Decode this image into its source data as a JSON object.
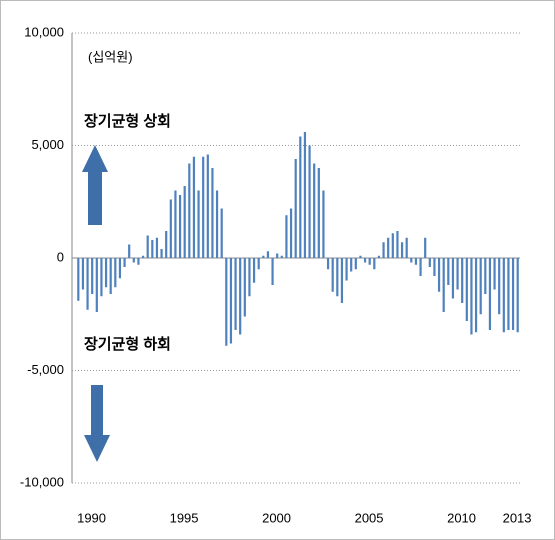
{
  "chart_data": {
    "type": "bar",
    "unit_label": "(십억원)",
    "annotations": [
      "장기균형 상회",
      "장기균형 하회"
    ],
    "color": "#4f81bd",
    "grid": true,
    "ylim": [
      -10000,
      10000
    ],
    "yticks": [
      {
        "value": -10000,
        "label": "-10,000"
      },
      {
        "value": -5000,
        "label": "-5,000"
      },
      0,
      {
        "value": 5000,
        "label": "5,000"
      },
      {
        "value": 10000,
        "label": "10,000"
      }
    ],
    "categories": [
      null,
      null,
      "1990",
      null,
      null,
      null,
      null,
      null,
      null,
      null,
      null,
      null,
      null,
      null,
      null,
      null,
      null,
      null,
      null,
      null,
      null,
      null,
      "1995",
      null,
      null,
      null,
      null,
      null,
      null,
      null,
      null,
      null,
      null,
      null,
      null,
      null,
      null,
      null,
      null,
      null,
      null,
      null,
      "2000",
      null,
      null,
      null,
      null,
      null,
      null,
      null,
      null,
      null,
      null,
      null,
      null,
      null,
      null,
      null,
      null,
      null,
      null,
      null,
      "2005",
      null,
      null,
      null,
      null,
      null,
      null,
      null,
      null,
      null,
      null,
      null,
      null,
      null,
      null,
      null,
      null,
      null,
      null,
      null,
      "2010",
      null,
      null,
      null,
      null,
      null,
      null,
      null,
      null,
      null,
      null,
      null,
      "2013",
      null
    ],
    "values": [
      -1900,
      -1400,
      -2300,
      -1600,
      -2400,
      -1700,
      -1300,
      -1600,
      -1300,
      -900,
      -400,
      600,
      -200,
      -300,
      100,
      1000,
      800,
      900,
      400,
      1200,
      2600,
      3000,
      2800,
      3200,
      4200,
      4500,
      3000,
      4500,
      4600,
      4000,
      3000,
      2200,
      -3900,
      -3800,
      -3200,
      -3400,
      -2600,
      -1700,
      -1100,
      -500,
      100,
      300,
      -1200,
      200,
      100,
      1900,
      2200,
      4400,
      5400,
      5600,
      5000,
      4200,
      4000,
      3000,
      -500,
      -1500,
      -1700,
      -2000,
      -1000,
      -600,
      -500,
      100,
      -200,
      -300,
      -500,
      100,
      700,
      900,
      1100,
      1200,
      700,
      900,
      -200,
      -300,
      -800,
      900,
      -400,
      -800,
      -1500,
      -2400,
      -1200,
      -1800,
      -1400,
      -2000,
      -2800,
      -3400,
      -3300,
      -2500,
      -1600,
      -3200,
      -1400,
      -2500,
      -3300,
      -3200,
      -3200,
      -3300
    ]
  }
}
